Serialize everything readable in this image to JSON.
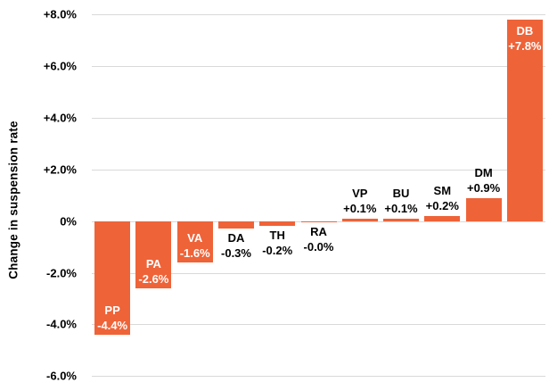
{
  "chart_data": {
    "type": "bar",
    "title": "",
    "xlabel": "",
    "ylabel": "Change in suspension rate",
    "ylim": [
      -6,
      8
    ],
    "grid": true,
    "legend": "none",
    "bar_color": "#EF6338",
    "grid_color": "#D9D9D9",
    "categories": [
      "PP",
      "PA",
      "VA",
      "DA",
      "TH",
      "RA",
      "VP",
      "BU",
      "SM",
      "DM",
      "DB"
    ],
    "values": [
      -4.4,
      -2.6,
      -1.6,
      -0.3,
      -0.2,
      -0.0,
      0.1,
      0.1,
      0.2,
      0.9,
      7.8
    ],
    "value_labels": [
      "-4.4%",
      "-2.6%",
      "-1.6%",
      "-0.3%",
      "-0.2%",
      "-0.0%",
      "+0.1%",
      "+0.1%",
      "+0.2%",
      "+0.9%",
      "+7.8%"
    ],
    "label_placements": [
      "inside-bottom",
      "inside-bottom",
      "inside-bottom",
      "below",
      "below",
      "below",
      "above",
      "above",
      "above",
      "above",
      "inside-top"
    ],
    "yticks": {
      "values": [
        8,
        6,
        4,
        2,
        0,
        -2,
        -4,
        -6
      ],
      "labels": [
        "+8.0%",
        "+6.0%",
        "+4.0%",
        "+2.0%",
        "0%",
        "-2.0%",
        "-4.0%",
        "-6.0%"
      ]
    }
  }
}
